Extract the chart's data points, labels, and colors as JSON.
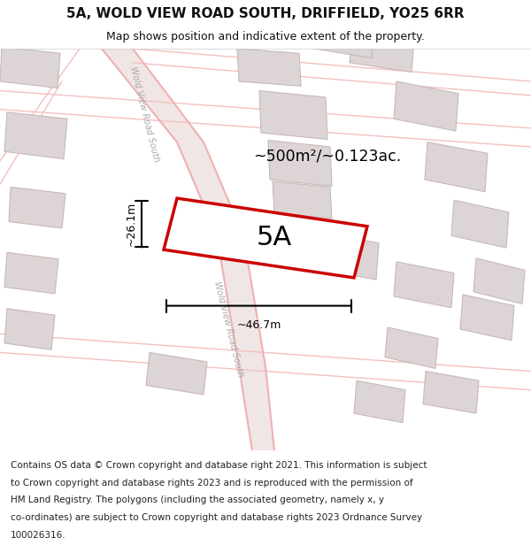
{
  "title": "5A, WOLD VIEW ROAD SOUTH, DRIFFIELD, YO25 6RR",
  "subtitle": "Map shows position and indicative extent of the property.",
  "area_label": "~500m²/~0.123ac.",
  "plot_label": "5A",
  "dim_width": "~46.7m",
  "dim_height": "~26.1m",
  "map_bg": "#f5eeee",
  "road_color": "#f0b0b0",
  "road_color2": "#f5c0c0",
  "building_color": "#ddd5d5",
  "building_edge": "#c8b8b8",
  "plot_edge_color": "#cc0000",
  "text_color": "#111111",
  "title_fontsize": 11,
  "subtitle_fontsize": 9,
  "footer_fontsize": 7.5,
  "footer_lines": [
    "Contains OS data © Crown copyright and database right 2021. This information is subject",
    "to Crown copyright and database rights 2023 and is reproduced with the permission of",
    "HM Land Registry. The polygons (including the associated geometry, namely x, y",
    "co-ordinates) are subject to Crown copyright and database rights 2023 Ordnance Survey",
    "100026316."
  ],
  "road_label": "Wold View Road South",
  "road_label_color": "#aaaaaa",
  "road_label_fontsize": 7
}
